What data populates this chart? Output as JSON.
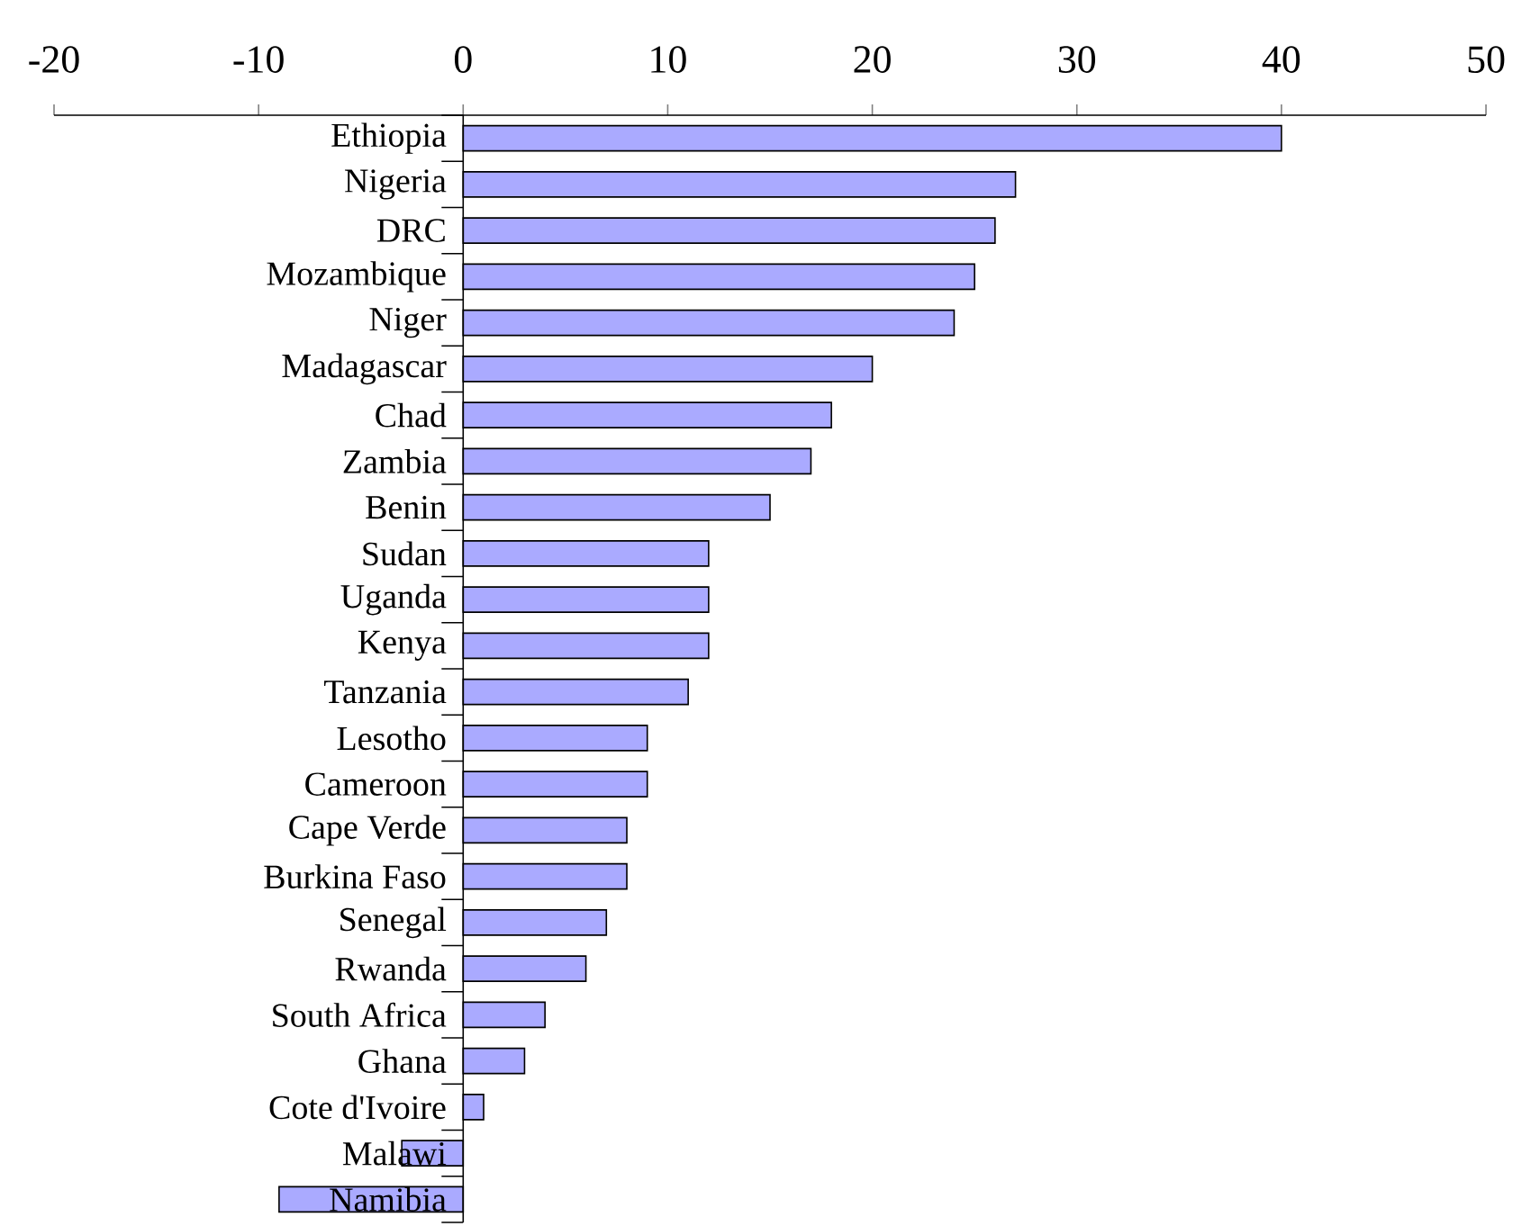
{
  "chart_data": {
    "type": "bar",
    "orientation": "horizontal",
    "categories": [
      "Ethiopia",
      "Nigeria",
      "DRC",
      "Mozambique",
      "Niger",
      "Madagascar",
      "Chad",
      "Zambia",
      "Benin",
      "Sudan",
      "Uganda",
      "Kenya",
      "Tanzania",
      "Lesotho",
      "Cameroon",
      "Cape Verde",
      "Burkina Faso",
      "Senegal",
      "Rwanda",
      "South Africa",
      "Ghana",
      "Cote d'Ivoire",
      "Malawi",
      "Namibia"
    ],
    "values": [
      40,
      27,
      26,
      25,
      24,
      20,
      18,
      17,
      15,
      12,
      12,
      12,
      11,
      9,
      9,
      8,
      8,
      7,
      6,
      4,
      3,
      1,
      -3,
      -9
    ],
    "color": "#aaaaff",
    "xlim": [
      -20,
      50
    ],
    "xticks": [
      -20,
      -10,
      0,
      10,
      20,
      30,
      40,
      50
    ],
    "grid": false
  }
}
